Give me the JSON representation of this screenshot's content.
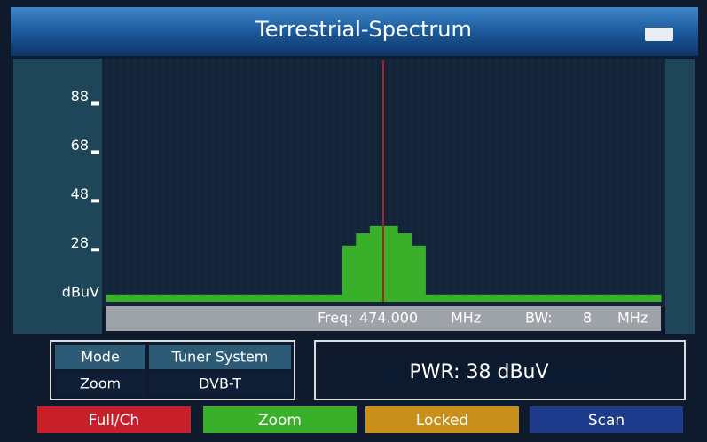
{
  "header": {
    "title": "Terrestrial-Spectrum"
  },
  "chart_data": {
    "type": "bar",
    "ylabel": "dBuV",
    "values": [
      10,
      10,
      10,
      10,
      10,
      10,
      10,
      10,
      10,
      10,
      10,
      10,
      10,
      10,
      10,
      10,
      10,
      30,
      35,
      38,
      38,
      35,
      30,
      10,
      10,
      10,
      10,
      10,
      10,
      10,
      10,
      10,
      10,
      10,
      10,
      10,
      10,
      10,
      10,
      10
    ],
    "color": "#3ab02a",
    "ylim": [
      7,
      106
    ],
    "yticks": [
      28,
      48,
      68,
      88
    ]
  },
  "info": {
    "freq_label": "Freq:",
    "freq": "474.000",
    "freq_unit": "MHz",
    "bw_label": "BW:",
    "bw": "8",
    "bw_unit": "MHz"
  },
  "mode_table": {
    "rows": [
      [
        "Mode",
        "Tuner System"
      ],
      [
        "Zoom",
        "DVB-T"
      ]
    ]
  },
  "power": "PWR: 38 dBuV",
  "buttons": [
    {
      "label": "Full/Ch",
      "color": "#c8202a"
    },
    {
      "label": "Zoom",
      "color": "#3ab02a"
    },
    {
      "label": "Locked",
      "color": "#c8901a"
    },
    {
      "label": "Scan",
      "color": "#1e3a8a"
    }
  ]
}
